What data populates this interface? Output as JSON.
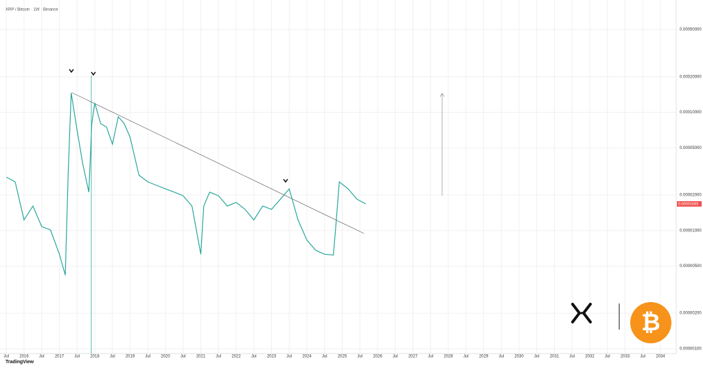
{
  "chart_data": {
    "type": "line",
    "title": "XRP / Bitcoin · 1W · Binance",
    "log_scale": true,
    "color": "#26a69a",
    "x": [
      "2015-07",
      "2015-10",
      "2016-01",
      "2016-04",
      "2016-07",
      "2016-10",
      "2017-01",
      "2017-03",
      "2017-04",
      "2017-05",
      "2017-07",
      "2017-09",
      "2017-11",
      "2017-12",
      "2018-01",
      "2018-03",
      "2018-05",
      "2018-07",
      "2018-09",
      "2018-11",
      "2019-01",
      "2019-04",
      "2019-07",
      "2019-10",
      "2020-01",
      "2020-04",
      "2020-07",
      "2020-10",
      "2021-01",
      "2021-02",
      "2021-04",
      "2021-07",
      "2021-10",
      "2022-01",
      "2022-04",
      "2022-07",
      "2022-10",
      "2023-01",
      "2023-04",
      "2023-07",
      "2023-10",
      "2024-01",
      "2024-04",
      "2024-07",
      "2024-10",
      "2024-11",
      "2024-12",
      "2025-03",
      "2025-06",
      "2025-09"
    ],
    "values": [
      2.83e-05,
      2.58e-05,
      1.23e-05,
      1.61e-05,
      1.08e-05,
      1.01e-05,
      6.3e-06,
      4.2e-06,
      3.15e-05,
      0.000146,
      7.02e-05,
      3.6e-05,
      2.11e-05,
      8.02e-05,
      0.00012,
      8.02e-05,
      7.5e-05,
      5.37e-05,
      9.17e-05,
      8.02e-05,
      6.14e-05,
      2.94e-05,
      2.58e-05,
      2.41e-05,
      2.25e-05,
      2.11e-05,
      1.97e-05,
      1.61e-05,
      6.3e-06,
      1.61e-05,
      2.11e-05,
      1.97e-05,
      1.61e-05,
      1.73e-05,
      1.51e-05,
      1.23e-05,
      1.61e-05,
      1.51e-05,
      1.84e-05,
      2.25e-05,
      1.23e-05,
      8.3e-06,
      6.8e-06,
      6.3e-06,
      6.2e-06,
      1.23e-05,
      2.58e-05,
      2.25e-05,
      1.84e-05,
      1.68e-05
    ],
    "last_price_label": "0.00001683",
    "ylim": [
      1e-06,
      0.0008
    ],
    "yticks": [
      {
        "value": 1e-06,
        "label": "0.00000100"
      },
      {
        "value": 2e-06,
        "label": "0.00000200"
      },
      {
        "value": 5e-06,
        "label": "0.00000500"
      },
      {
        "value": 1e-05,
        "label": "0.00001000"
      },
      {
        "value": 2e-05,
        "label": "0.00002000"
      },
      {
        "value": 5e-05,
        "label": "0.00005000"
      },
      {
        "value": 0.0001,
        "label": "0.00010000"
      },
      {
        "value": 0.0002,
        "label": "0.00020000"
      },
      {
        "value": 0.0005,
        "label": "0.00050000"
      }
    ],
    "xticks": [
      {
        "value": "2015-07",
        "label": "Jul"
      },
      {
        "value": "2016-01",
        "label": "2016"
      },
      {
        "value": "2016-07",
        "label": "Jul"
      },
      {
        "value": "2017-01",
        "label": "2017"
      },
      {
        "value": "2017-07",
        "label": "Jul"
      },
      {
        "value": "2018-01",
        "label": "2018"
      },
      {
        "value": "2018-07",
        "label": "Jul"
      },
      {
        "value": "2019-01",
        "label": "2019"
      },
      {
        "value": "2019-07",
        "label": "Jul"
      },
      {
        "value": "2020-01",
        "label": "2020"
      },
      {
        "value": "2020-07",
        "label": "Jul"
      },
      {
        "value": "2021-01",
        "label": "2021"
      },
      {
        "value": "2021-07",
        "label": "Jul"
      },
      {
        "value": "2022-01",
        "label": "2022"
      },
      {
        "value": "2022-07",
        "label": "Jul"
      },
      {
        "value": "2023-01",
        "label": "2023"
      },
      {
        "value": "2023-07",
        "label": "Jul"
      },
      {
        "value": "2024-01",
        "label": "2024"
      },
      {
        "value": "2024-07",
        "label": "Jul"
      },
      {
        "value": "2025-01",
        "label": "2025"
      },
      {
        "value": "2025-07",
        "label": "Jul"
      },
      {
        "value": "2026-01",
        "label": "2026"
      },
      {
        "value": "2026-07",
        "label": "Jul"
      },
      {
        "value": "2027-01",
        "label": "2027"
      },
      {
        "value": "2027-07",
        "label": "Jul"
      },
      {
        "value": "2028-01",
        "label": "2028"
      },
      {
        "value": "2028-07",
        "label": "Jul"
      },
      {
        "value": "2029-01",
        "label": "2029"
      },
      {
        "value": "2029-07",
        "label": "Jul"
      },
      {
        "value": "2030-01",
        "label": "2030"
      },
      {
        "value": "2030-07",
        "label": "Jul"
      },
      {
        "value": "2031-01",
        "label": "2031"
      },
      {
        "value": "2031-07",
        "label": "Jul"
      },
      {
        "value": "2032-01",
        "label": "2032"
      },
      {
        "value": "2032-07",
        "label": "Jul"
      },
      {
        "value": "2033-01",
        "label": "2033"
      },
      {
        "value": "2033-07",
        "label": "Jul"
      },
      {
        "value": "2034-01",
        "label": "2034"
      }
    ],
    "grid": true,
    "branding": "TradingView"
  }
}
